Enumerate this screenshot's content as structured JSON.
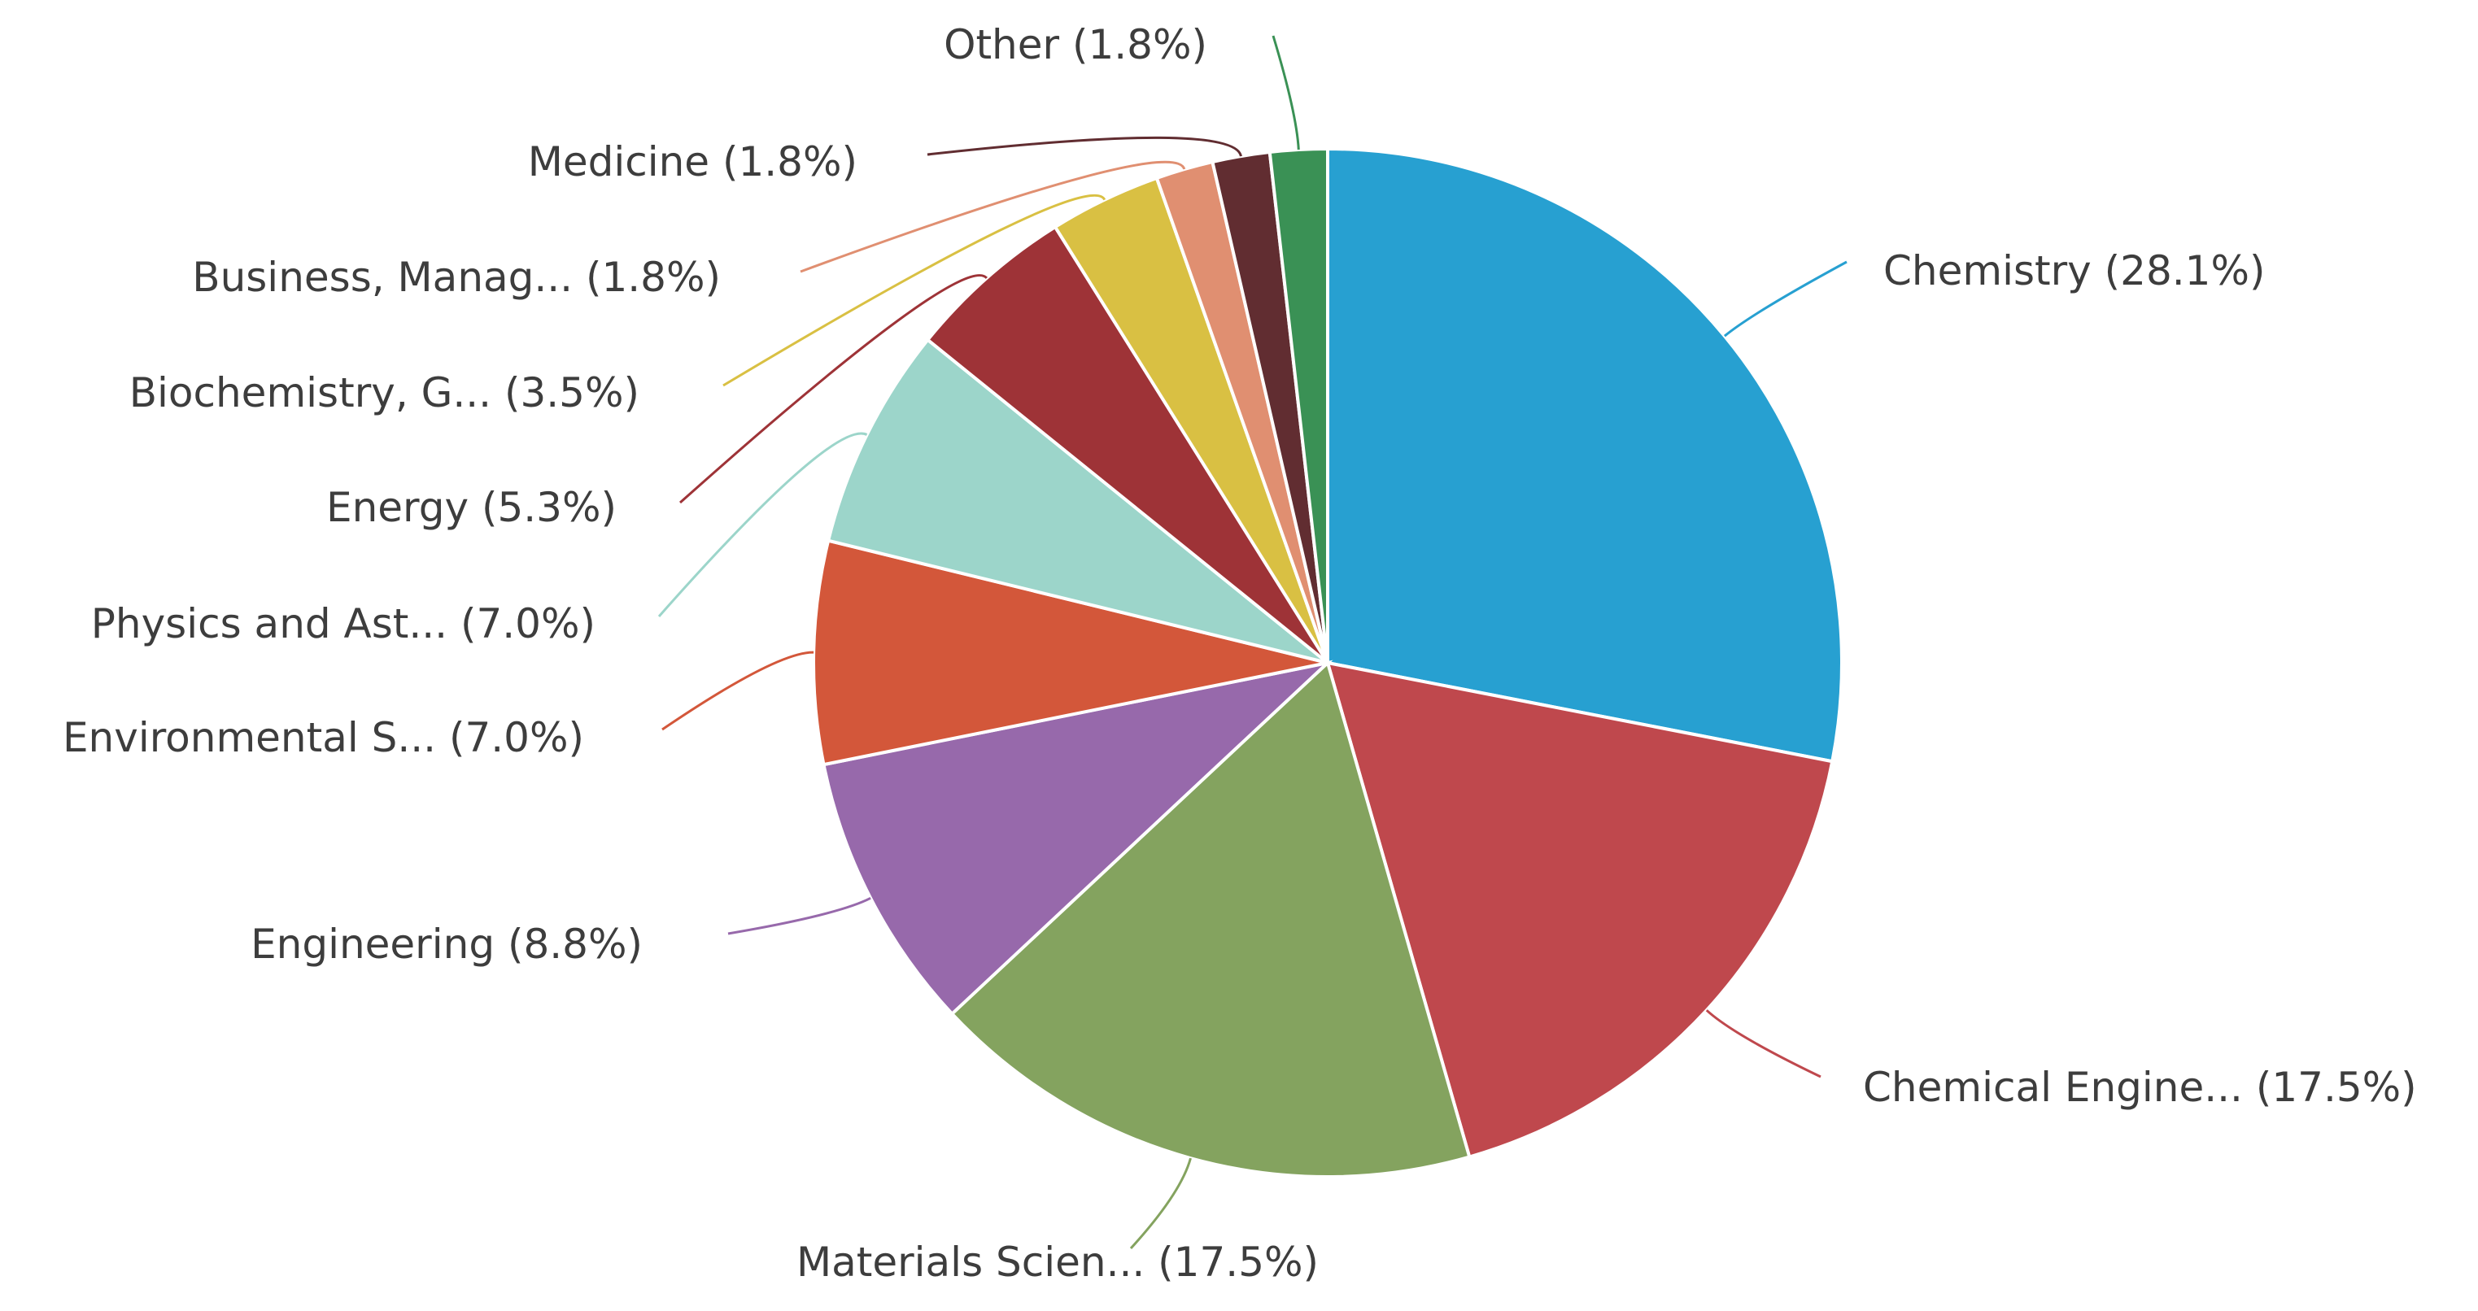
{
  "chart_data": {
    "type": "pie",
    "title": "",
    "slices": [
      {
        "label": "Chemistry (28.1%)",
        "value": 28.1,
        "color": "#27a0d1"
      },
      {
        "label": "Chemical Engine... (17.5%)",
        "value": 17.5,
        "color": "#bf484d"
      },
      {
        "label": "Materials Scien... (17.5%)",
        "value": 17.5,
        "color": "#84a35f"
      },
      {
        "label": "Engineering (8.8%)",
        "value": 8.8,
        "color": "#9769ab"
      },
      {
        "label": "Environmental S... (7.0%)",
        "value": 7.0,
        "color": "#d3573a"
      },
      {
        "label": "Physics and Ast... (7.0%)",
        "value": 7.0,
        "color": "#9cd5ca"
      },
      {
        "label": "Energy (5.3%)",
        "value": 5.3,
        "color": "#9e3337"
      },
      {
        "label": "Biochemistry, G... (3.5%)",
        "value": 3.5,
        "color": "#d9c043"
      },
      {
        "label": "Business, Manag... (1.8%)",
        "value": 1.8,
        "color": "#e08f71"
      },
      {
        "label": "Medicine (1.8%)",
        "value": 1.8,
        "color": "#612d31"
      },
      {
        "label": "Other (1.8%)",
        "value": 1.8,
        "color": "#3a9155"
      }
    ],
    "start_angle": "12 o'clock",
    "direction": "clockwise",
    "legend": "none"
  }
}
